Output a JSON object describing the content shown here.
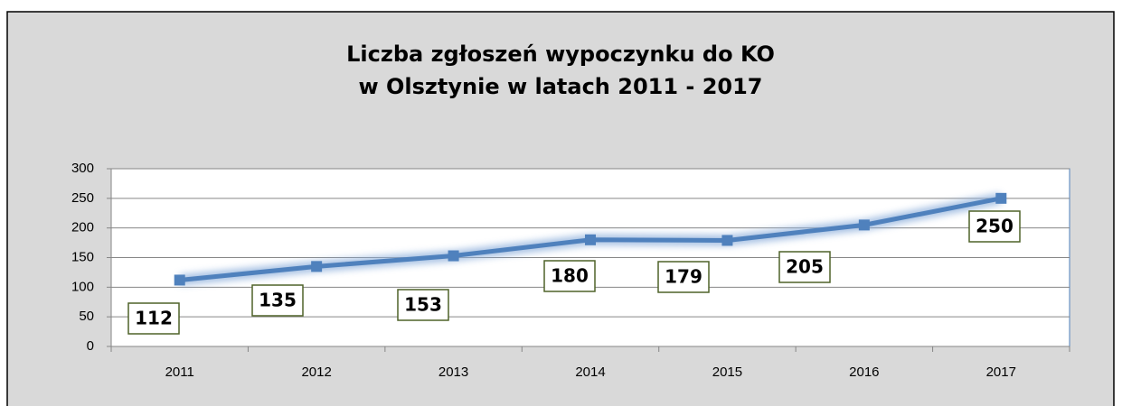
{
  "chart_data": {
    "type": "line",
    "title": [
      "Liczba zgłoszeń wypoczynku do KO",
      "w Olsztynie w latach 2011 - 2017"
    ],
    "categories": [
      "2011",
      "2012",
      "2013",
      "2014",
      "2015",
      "2016",
      "2017"
    ],
    "series": [
      {
        "color": "#4f81bd",
        "values": [
          112,
          135,
          153,
          180,
          179,
          205,
          250
        ]
      }
    ],
    "ylim": [
      0,
      300
    ],
    "yticks": [
      0,
      50,
      100,
      150,
      200,
      250,
      300
    ],
    "grid": true
  }
}
